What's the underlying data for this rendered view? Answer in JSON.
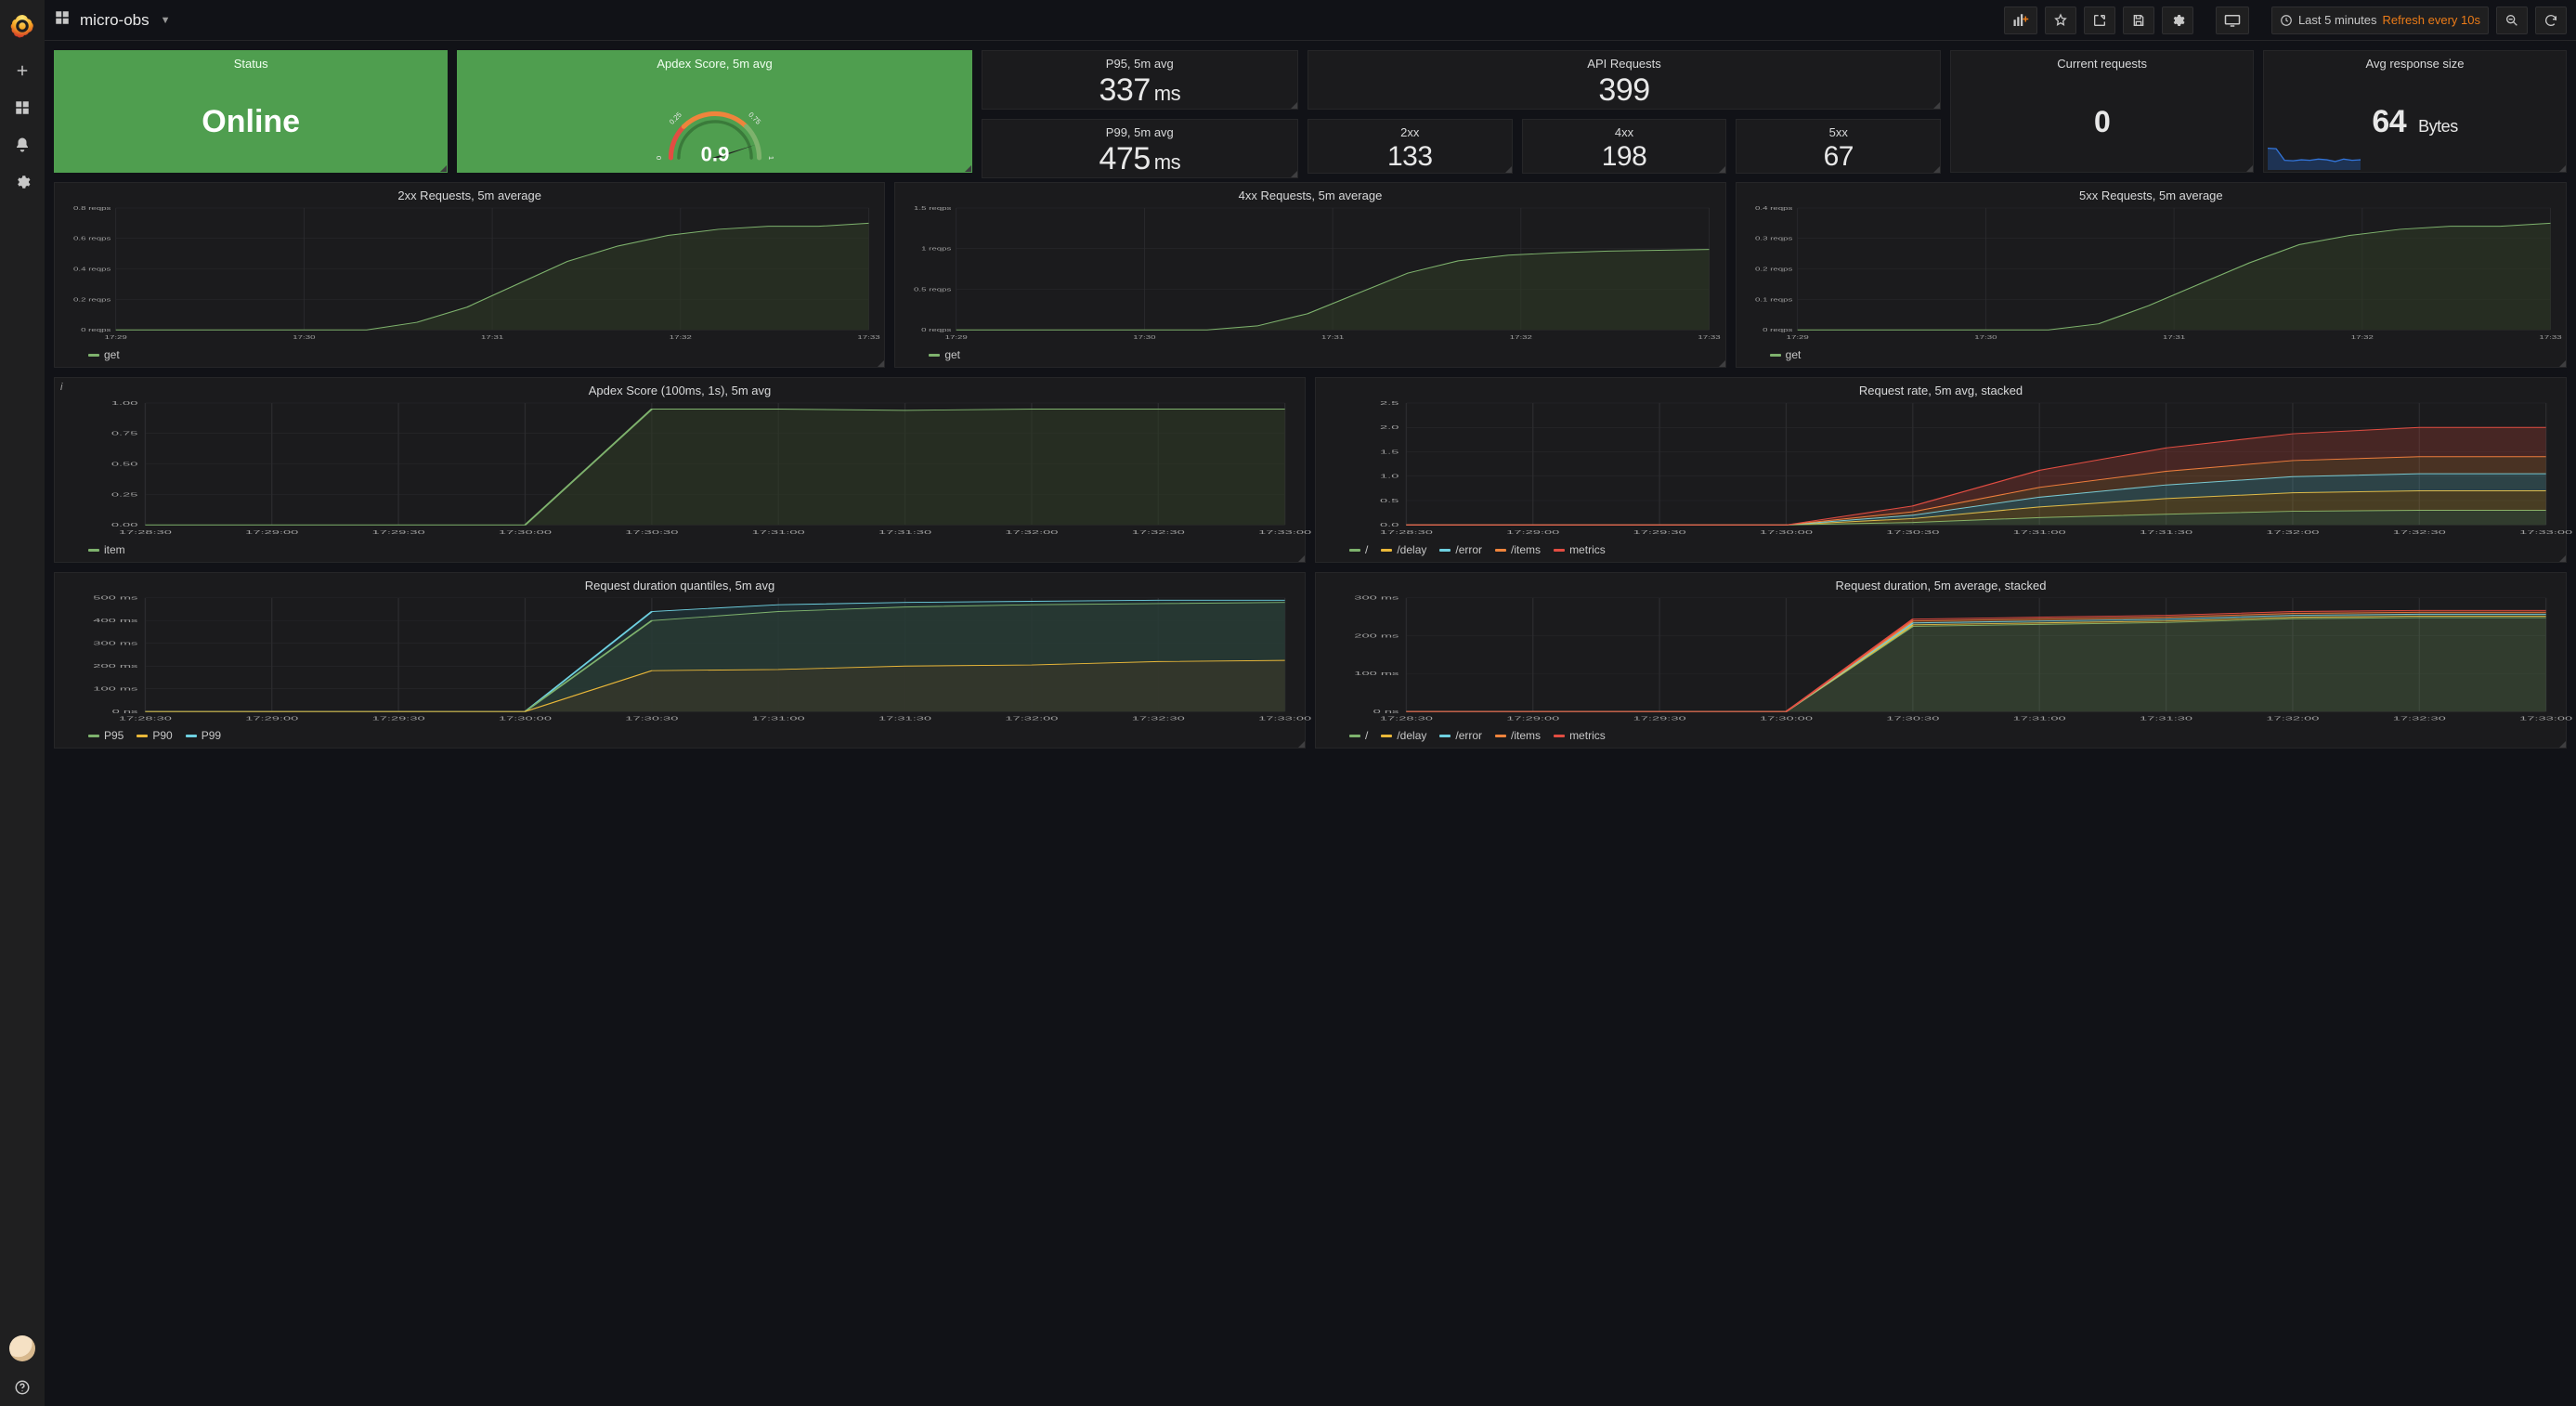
{
  "colors": {
    "bg": "#111217",
    "panel": "#1b1b1d",
    "panel_border": "#262628",
    "grid": "#2b2b2e",
    "axis_text": "#a0a0a0",
    "title_text": "#d8d9da",
    "green_panel": "#4f9e4f",
    "series_green": "#7eb26d",
    "series_yellow": "#eab839",
    "series_blue": "#6ed0e0",
    "series_orange": "#ef843c",
    "series_red": "#e24d42",
    "accent_orange": "#eb7b18"
  },
  "header": {
    "title": "micro-obs",
    "time_label": "Last 5 minutes",
    "refresh_label": "Refresh every 10s"
  },
  "stats": {
    "status": {
      "title": "Status",
      "value": "Online"
    },
    "apdex_gauge": {
      "title": "Apdex Score, 5m avg",
      "value": "0.9",
      "ticks": [
        "0",
        "0.25",
        "0.75",
        "1"
      ],
      "arc_colors": [
        "#e24d42",
        "#ef843c",
        "#7eb26d"
      ]
    },
    "p95": {
      "title": "P95, 5m avg",
      "value": "337",
      "unit": "ms"
    },
    "p99": {
      "title": "P99, 5m avg",
      "value": "475",
      "unit": "ms"
    },
    "api_requests": {
      "title": "API Requests",
      "value": "399"
    },
    "sc2xx": {
      "title": "2xx",
      "value": "133"
    },
    "sc4xx": {
      "title": "4xx",
      "value": "198"
    },
    "sc5xx": {
      "title": "5xx",
      "value": "67"
    },
    "current_requests": {
      "title": "Current requests",
      "value": "0"
    },
    "avg_resp_size": {
      "title": "Avg response size",
      "value": "64",
      "unit": "Bytes",
      "spark": {
        "color": "#3274d9",
        "fill": "#1f3a63",
        "points": [
          0.9,
          0.88,
          0.4,
          0.38,
          0.42,
          0.4,
          0.45,
          0.42,
          0.35,
          0.45,
          0.4,
          0.42
        ]
      }
    }
  },
  "x_times_5": [
    "17:29",
    "17:30",
    "17:31",
    "17:32",
    "17:33"
  ],
  "x_times_10": [
    "17:28:30",
    "17:29:00",
    "17:29:30",
    "17:30:00",
    "17:30:30",
    "17:31:00",
    "17:31:30",
    "17:32:00",
    "17:32:30",
    "17:33:00"
  ],
  "charts_row2": [
    {
      "title": "2xx Requests, 5m average",
      "ylim": [
        0,
        0.8
      ],
      "ytick_step": 0.2,
      "yunit": "reqps",
      "series": [
        {
          "name": "get",
          "color": "#7eb26d",
          "fill": "#2e3a27",
          "points": [
            0,
            0,
            0,
            0,
            0,
            0,
            0.05,
            0.15,
            0.3,
            0.45,
            0.55,
            0.62,
            0.66,
            0.68,
            0.68,
            0.7
          ]
        }
      ]
    },
    {
      "title": "4xx Requests, 5m average",
      "ylim": [
        0,
        1.5
      ],
      "ytick_step": 0.5,
      "yunit": "reqps",
      "series": [
        {
          "name": "get",
          "color": "#7eb26d",
          "fill": "#2e3a27",
          "points": [
            0,
            0,
            0,
            0,
            0,
            0,
            0.05,
            0.2,
            0.45,
            0.7,
            0.85,
            0.92,
            0.95,
            0.97,
            0.98,
            0.99
          ]
        }
      ]
    },
    {
      "title": "5xx Requests, 5m average",
      "ylim": [
        0,
        0.4
      ],
      "ytick_step": 0.1,
      "yunit": "reqps",
      "series": [
        {
          "name": "get",
          "color": "#7eb26d",
          "fill": "#2e3a27",
          "points": [
            0,
            0,
            0,
            0,
            0,
            0,
            0.02,
            0.08,
            0.15,
            0.22,
            0.28,
            0.31,
            0.33,
            0.34,
            0.34,
            0.35
          ]
        }
      ]
    }
  ],
  "charts_row3": [
    {
      "title": "Apdex Score (100ms, 1s), 5m avg",
      "ylim": [
        0,
        1.0
      ],
      "ytick_step": 0.25,
      "yunit": "",
      "has_info": true,
      "series": [
        {
          "name": "item",
          "color": "#7eb26d",
          "fill": "#2e3a27",
          "points": [
            0,
            0,
            0,
            0,
            0.95,
            0.95,
            0.94,
            0.95,
            0.95,
            0.95
          ]
        }
      ]
    },
    {
      "title": "Request rate, 5m avg, stacked",
      "ylim": [
        0,
        2.5
      ],
      "ytick_step": 0.5,
      "yunit": "",
      "stacked": true,
      "series": [
        {
          "name": "/",
          "color": "#7eb26d",
          "points": [
            0,
            0,
            0,
            0,
            0.05,
            0.15,
            0.22,
            0.28,
            0.3,
            0.3
          ]
        },
        {
          "name": "/delay",
          "color": "#eab839",
          "points": [
            0,
            0,
            0,
            0,
            0.08,
            0.22,
            0.32,
            0.38,
            0.4,
            0.4
          ]
        },
        {
          "name": "/error",
          "color": "#6ed0e0",
          "points": [
            0,
            0,
            0,
            0,
            0.07,
            0.2,
            0.28,
            0.33,
            0.35,
            0.35
          ]
        },
        {
          "name": "/items",
          "color": "#ef843c",
          "points": [
            0,
            0,
            0,
            0,
            0.07,
            0.2,
            0.28,
            0.33,
            0.35,
            0.35
          ]
        },
        {
          "name": "metrics",
          "color": "#e24d42",
          "points": [
            0,
            0,
            0,
            0,
            0.12,
            0.35,
            0.48,
            0.55,
            0.6,
            0.6
          ]
        }
      ]
    }
  ],
  "charts_row4": [
    {
      "title": "Request duration quantiles, 5m avg",
      "ylim": [
        0,
        500
      ],
      "ytick_step": 100,
      "yunit": "ms",
      "series": [
        {
          "name": "P95",
          "color": "#7eb26d",
          "fill": "#2b3d34",
          "points": [
            0,
            0,
            0,
            0,
            400,
            440,
            460,
            470,
            475,
            480
          ]
        },
        {
          "name": "P90",
          "color": "#eab839",
          "fill": "#3a3627",
          "points": [
            0,
            0,
            0,
            0,
            180,
            185,
            200,
            205,
            220,
            225
          ]
        },
        {
          "name": "P99",
          "color": "#6ed0e0",
          "fill": "#223a3f",
          "points": [
            0,
            0,
            0,
            0,
            440,
            470,
            480,
            485,
            490,
            490
          ]
        }
      ],
      "draw_order": [
        "P99",
        "P95",
        "P90"
      ]
    },
    {
      "title": "Request duration, 5m average, stacked",
      "ylim": [
        0,
        300
      ],
      "ytick_step": 100,
      "yunit": "ms",
      "stacked": true,
      "series": [
        {
          "name": "/",
          "color": "#7eb26d",
          "points": [
            0,
            0,
            0,
            0,
            225,
            230,
            235,
            245,
            248,
            248
          ]
        },
        {
          "name": "/delay",
          "color": "#eab839",
          "points": [
            0,
            0,
            0,
            0,
            4,
            4,
            4,
            4,
            4,
            4
          ]
        },
        {
          "name": "/error",
          "color": "#6ed0e0",
          "points": [
            0,
            0,
            0,
            0,
            5,
            5,
            5,
            5,
            5,
            5
          ]
        },
        {
          "name": "/items",
          "color": "#ef843c",
          "points": [
            0,
            0,
            0,
            0,
            5,
            5,
            5,
            5,
            5,
            5
          ]
        },
        {
          "name": "metrics",
          "color": "#e24d42",
          "points": [
            0,
            0,
            0,
            0,
            5,
            5,
            5,
            5,
            5,
            5
          ]
        }
      ]
    }
  ]
}
